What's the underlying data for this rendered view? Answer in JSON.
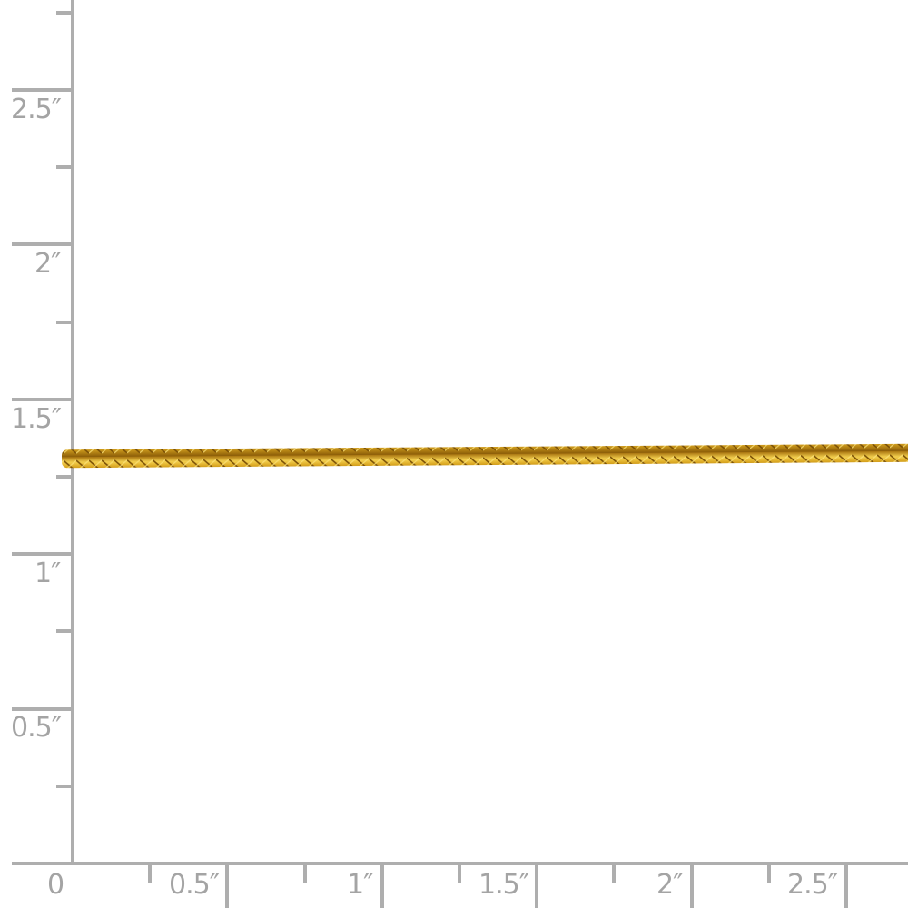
{
  "ruler": {
    "y_labels": [
      "2.5″",
      "2″",
      "1.5″",
      "1″",
      "0.5″"
    ],
    "x_labels": [
      "0",
      "0.5″",
      "1″",
      "1.5″",
      "2″",
      "2.5″"
    ],
    "color": "#aeaeae"
  },
  "product": {
    "type": "wheat chain",
    "color": "#d9a520"
  }
}
